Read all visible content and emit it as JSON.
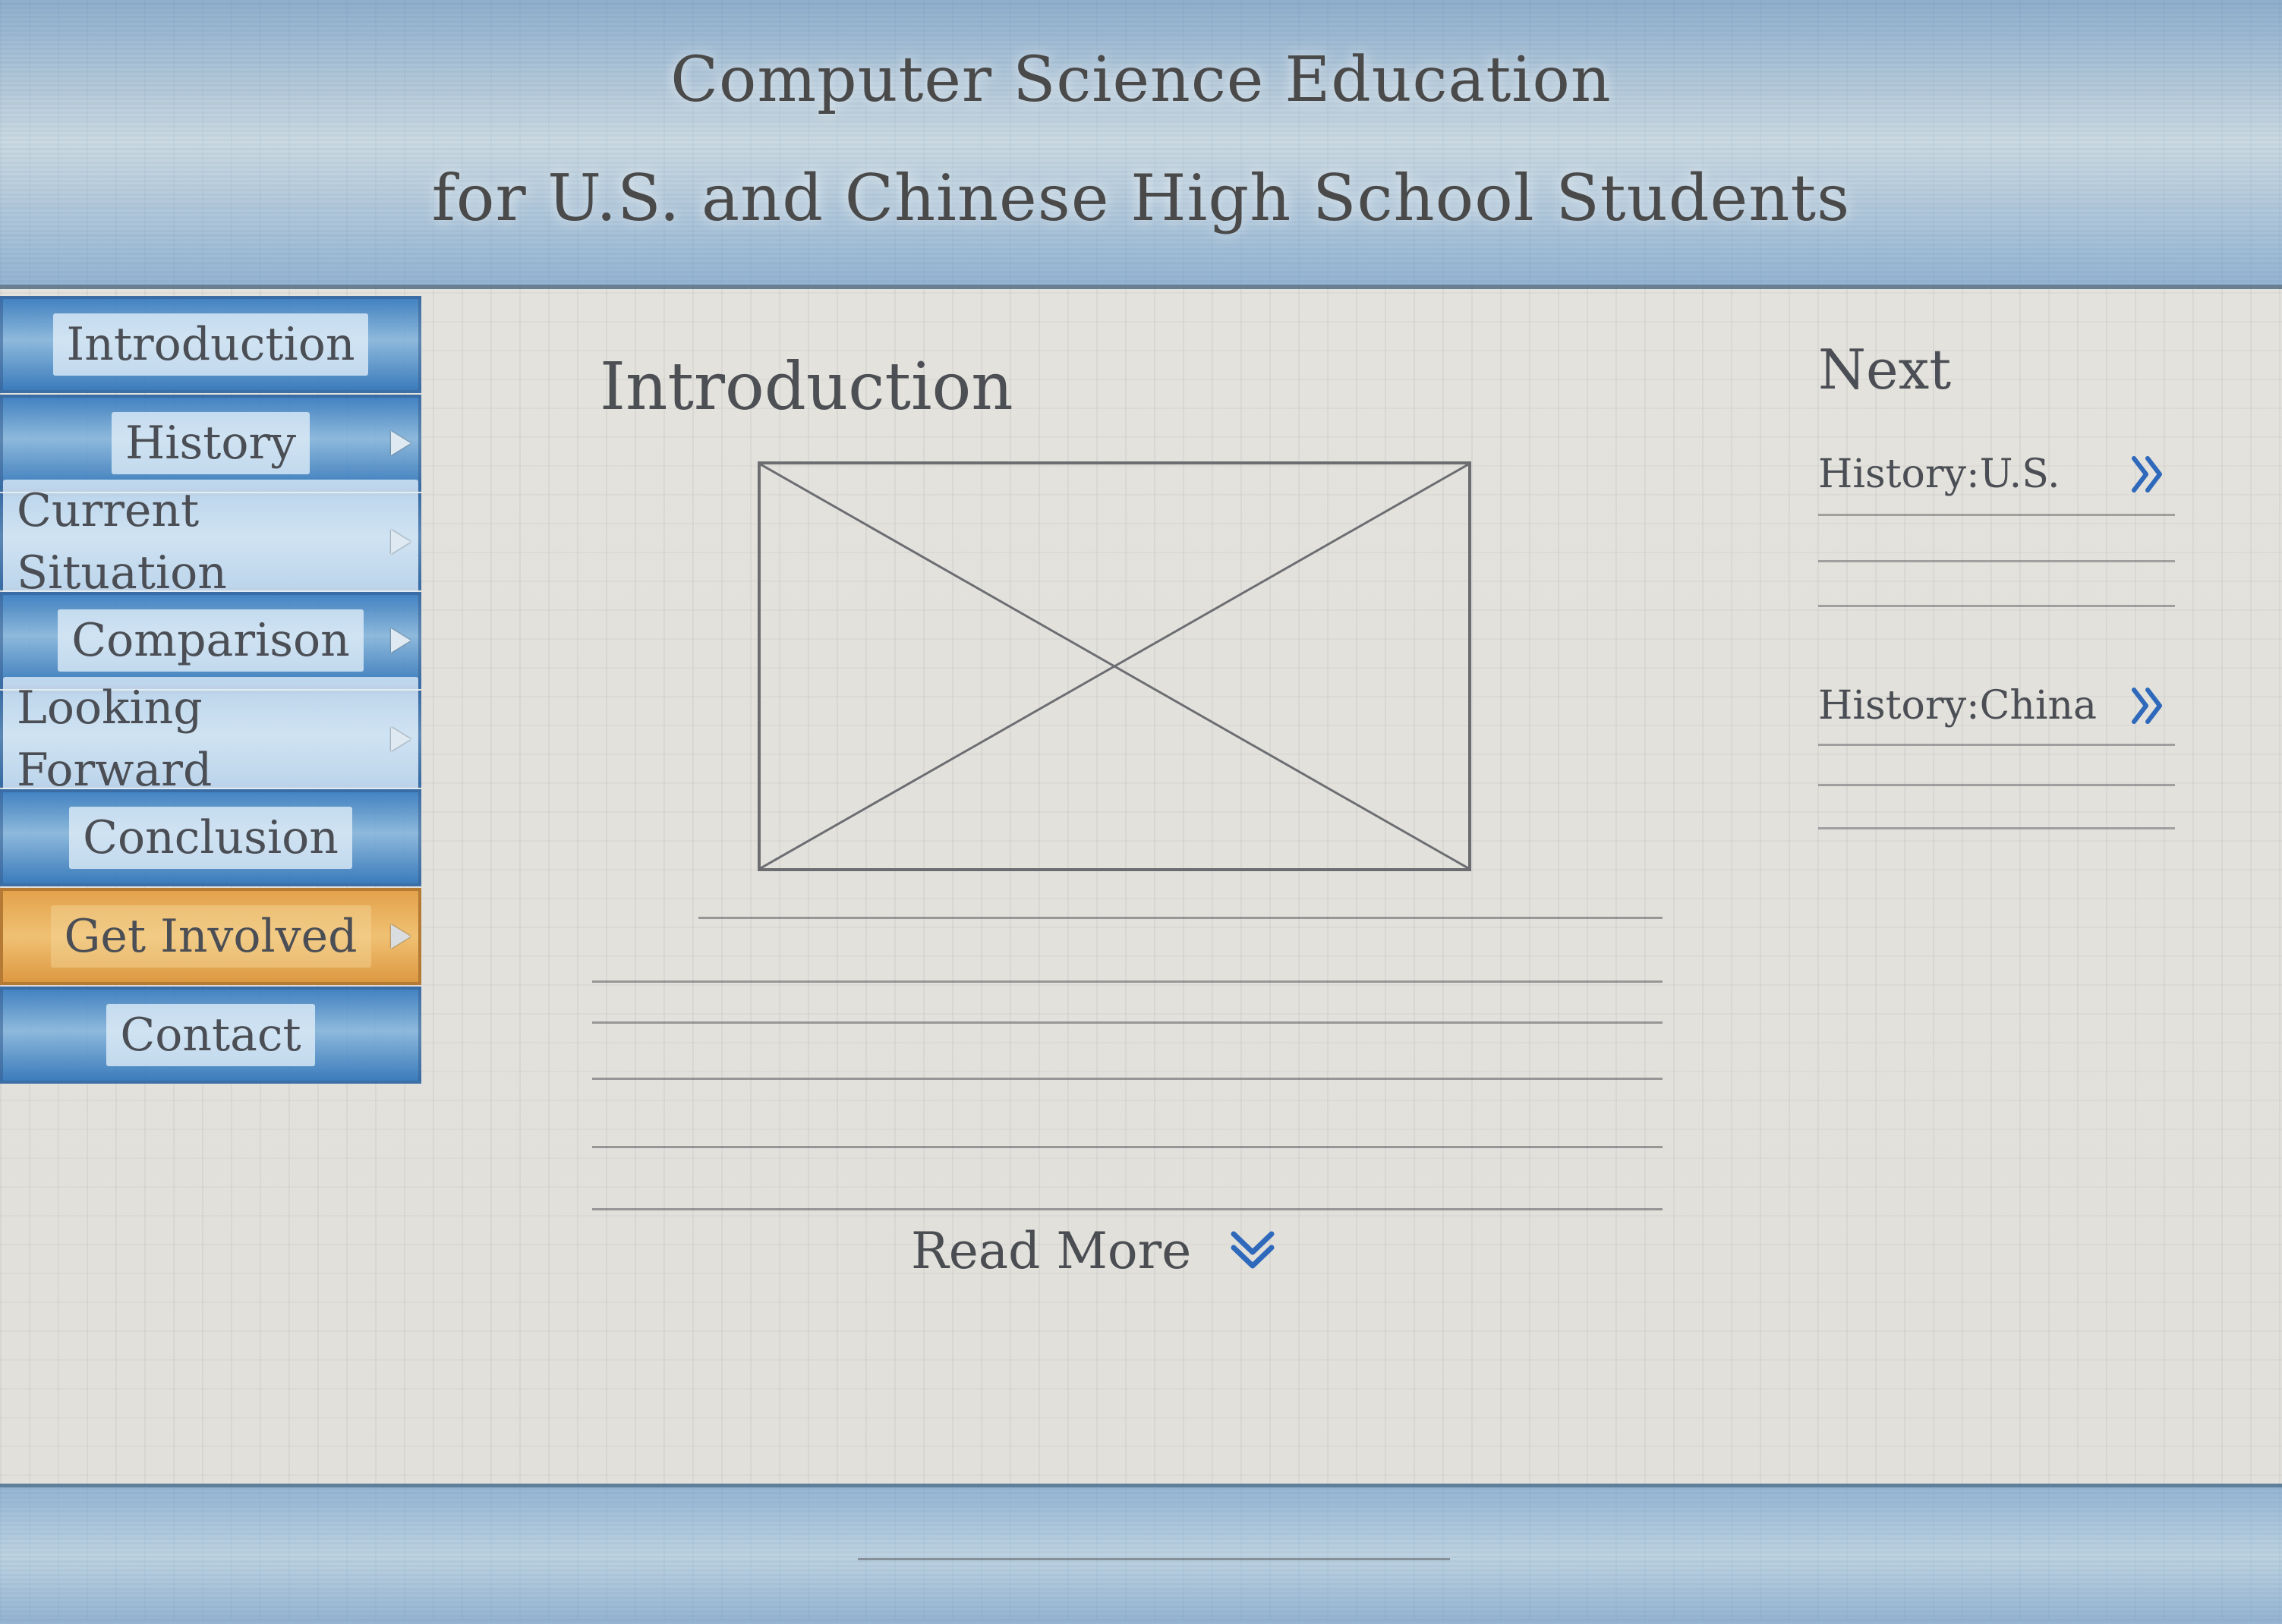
{
  "header": {
    "title_line_1": "Computer Science Education",
    "title_line_2": "for U.S. and Chinese High School Students"
  },
  "sidebar": {
    "items": [
      {
        "label": "Introduction",
        "has_submenu": false,
        "active": false
      },
      {
        "label": "History",
        "has_submenu": true,
        "active": false
      },
      {
        "label": "Current Situation",
        "has_submenu": true,
        "active": false
      },
      {
        "label": "Comparison",
        "has_submenu": true,
        "active": false
      },
      {
        "label": "Looking Forward",
        "has_submenu": true,
        "active": false
      },
      {
        "label": "Conclusion",
        "has_submenu": false,
        "active": false
      },
      {
        "label": "Get Involved",
        "has_submenu": true,
        "active": true
      },
      {
        "label": "Contact",
        "has_submenu": false,
        "active": false
      }
    ]
  },
  "main": {
    "section_title": "Introduction",
    "read_more_label": "Read More"
  },
  "right_rail": {
    "title": "Next",
    "links": [
      {
        "label": "History:U.S."
      },
      {
        "label": "History:China"
      }
    ]
  },
  "icons": {
    "submenu": "play-triangle-icon",
    "next": "double-chevron-right-icon",
    "read_more": "double-chevron-down-icon"
  },
  "colors": {
    "primary_blue": "#4a8fcc",
    "active_orange": "#e8ad5d",
    "paper": "#e4e2dc",
    "ink": "#4c4f55",
    "accent_blue": "#2f69bb"
  }
}
